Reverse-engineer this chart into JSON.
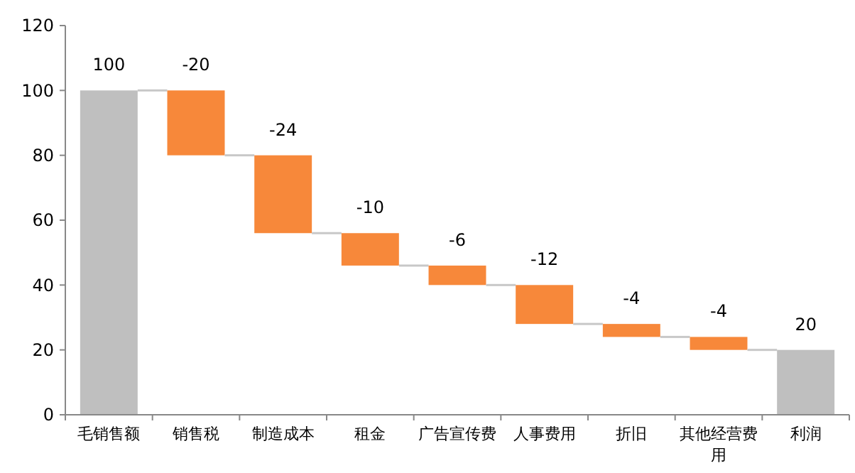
{
  "chart_data": {
    "type": "bar",
    "categories": [
      "毛销售额",
      "销售税",
      "制造成本",
      "租金",
      "广告宣传费",
      "人事费用",
      "折旧",
      "其他经营费用",
      "利润"
    ],
    "values": [
      100,
      -20,
      -24,
      -10,
      -6,
      -12,
      -4,
      -4,
      20
    ],
    "base": [
      0,
      100,
      80,
      56,
      46,
      40,
      28,
      24,
      0
    ],
    "colors": [
      "#bfbfbf",
      "#f7883a",
      "#f7883a",
      "#f7883a",
      "#f7883a",
      "#f7883a",
      "#f7883a",
      "#f7883a",
      "#bfbfbf"
    ],
    "ylim": [
      0,
      120
    ],
    "yticks": [
      0,
      20,
      40,
      60,
      80,
      100,
      120
    ],
    "grid": false,
    "data_labels": true
  }
}
